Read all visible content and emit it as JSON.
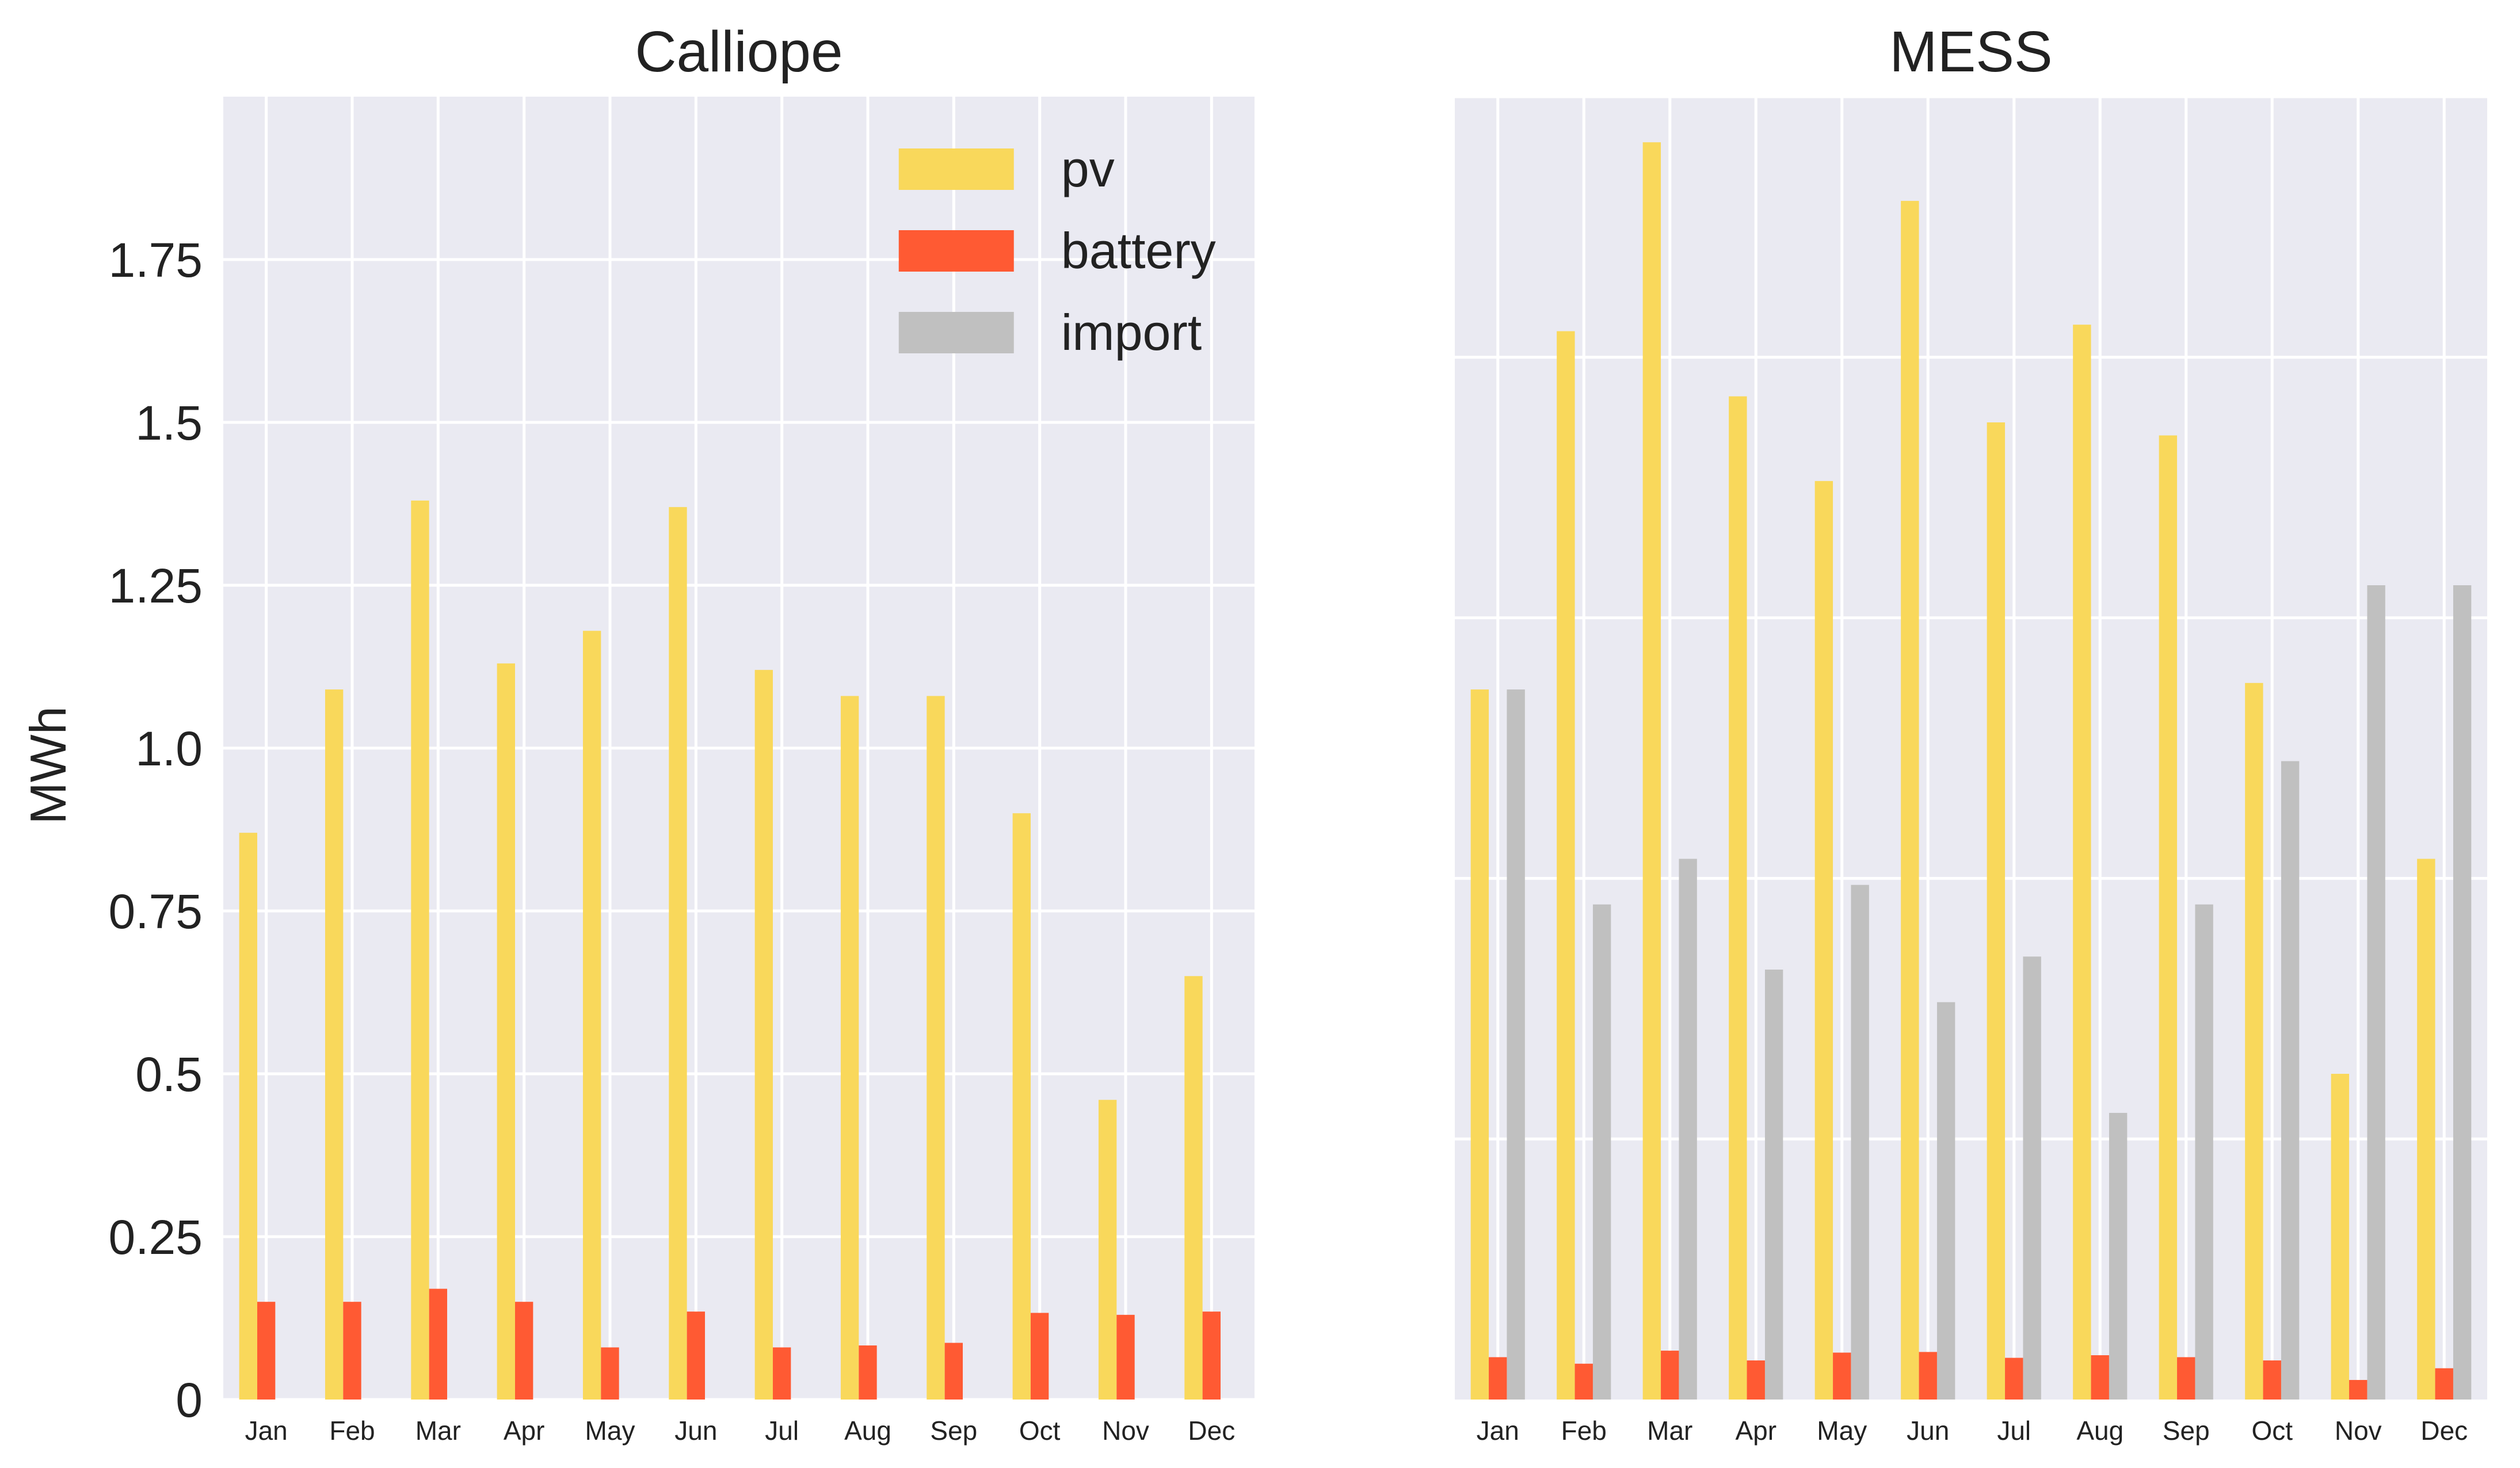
{
  "chart_data": [
    {
      "type": "bar",
      "title": "Calliope",
      "ylabel": "MWh",
      "xlabel": "",
      "ylim": [
        0,
        2.0
      ],
      "yticks": [
        0,
        0.25,
        0.5,
        0.75,
        1.0,
        1.25,
        1.5,
        1.75
      ],
      "ytick_labels": [
        "0",
        "0.25",
        "0.5",
        "0.75",
        "1.0",
        "1.25",
        "1.5",
        "1.75"
      ],
      "grid": true,
      "legend": "top-right",
      "categories": [
        "Jan",
        "Feb",
        "Mar",
        "Apr",
        "May",
        "Jun",
        "Jul",
        "Aug",
        "Sep",
        "Oct",
        "Nov",
        "Dec"
      ],
      "series": [
        {
          "name": "pv",
          "color": "#F9D85B",
          "values": [
            0.87,
            1.09,
            1.38,
            1.13,
            1.18,
            1.37,
            1.12,
            1.08,
            1.08,
            0.9,
            0.46,
            0.65
          ]
        },
        {
          "name": "battery",
          "color": "#FF5A33",
          "values": [
            0.15,
            0.15,
            0.17,
            0.15,
            0.08,
            0.135,
            0.08,
            0.083,
            0.087,
            0.133,
            0.13,
            0.135
          ]
        },
        {
          "name": "import",
          "color": "#C0C0C0",
          "values": [
            0.0,
            0.0,
            0.0,
            0.0,
            0.0,
            0.0,
            0.0,
            0.0,
            0.0,
            0.0,
            0.0,
            0.0
          ]
        }
      ]
    },
    {
      "type": "bar",
      "title": "MESS",
      "ylabel": "",
      "xlabel": "",
      "ylim": [
        0,
        2.0
      ],
      "yticks": [
        0.4,
        0.8,
        1.2,
        1.6,
        2.0
      ],
      "ytick_labels": [],
      "grid": true,
      "legend": "none",
      "categories": [
        "Jan",
        "Feb",
        "Mar",
        "Apr",
        "May",
        "Jun",
        "Jul",
        "Aug",
        "Sep",
        "Oct",
        "Nov",
        "Dec"
      ],
      "series": [
        {
          "name": "pv",
          "color": "#F9D85B",
          "values": [
            1.09,
            1.64,
            1.93,
            1.54,
            1.41,
            1.84,
            1.5,
            1.65,
            1.48,
            1.1,
            0.5,
            0.83
          ]
        },
        {
          "name": "battery",
          "color": "#FF5A33",
          "values": [
            0.065,
            0.055,
            0.075,
            0.06,
            0.072,
            0.073,
            0.064,
            0.068,
            0.065,
            0.06,
            0.03,
            0.048
          ]
        },
        {
          "name": "import",
          "color": "#C0C0C0",
          "values": [
            1.09,
            0.76,
            0.83,
            0.66,
            0.79,
            0.61,
            0.68,
            0.44,
            0.76,
            0.98,
            1.25,
            1.25
          ]
        }
      ]
    }
  ]
}
